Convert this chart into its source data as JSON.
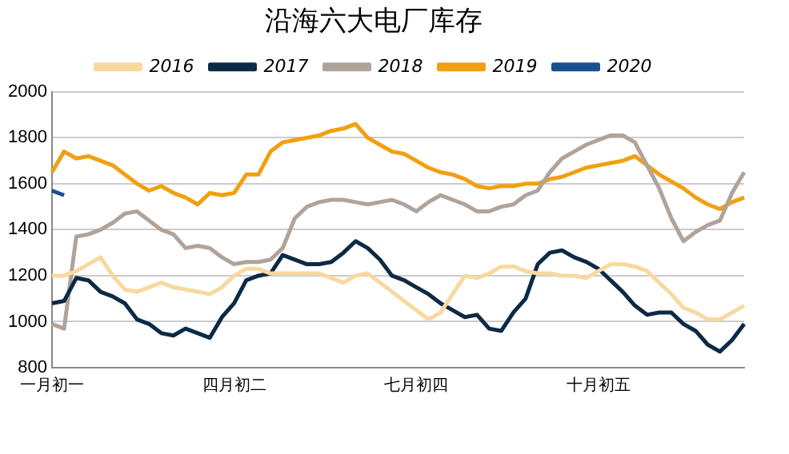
{
  "chart_data": {
    "type": "line",
    "title": "沿海六大电厂库存",
    "categories": [
      "一月初一",
      null,
      null,
      null,
      null,
      null,
      null,
      null,
      null,
      null,
      null,
      null,
      null,
      null,
      null,
      "四月初二",
      null,
      null,
      null,
      null,
      null,
      null,
      null,
      null,
      null,
      null,
      null,
      null,
      null,
      null,
      "七月初四",
      null,
      null,
      null,
      null,
      null,
      null,
      null,
      null,
      null,
      null,
      null,
      null,
      null,
      null,
      "十月初五",
      null,
      null,
      null,
      null,
      null,
      null,
      null,
      null,
      null,
      null,
      null,
      null
    ],
    "series": [
      {
        "name": "2016",
        "color": "#f7d9a0",
        "values": [
          1200,
          1200,
          1220,
          1250,
          1280,
          1200,
          1140,
          1130,
          1150,
          1170,
          1150,
          1140,
          1130,
          1120,
          1150,
          1200,
          1230,
          1230,
          1210,
          1210,
          1210,
          1210,
          1210,
          1190,
          1170,
          1200,
          1210,
          1170,
          1130,
          1090,
          1050,
          1010,
          1040,
          1120,
          1200,
          1190,
          1210,
          1240,
          1240,
          1220,
          1210,
          1210,
          1200,
          1200,
          1190,
          1220,
          1250,
          1250,
          1240,
          1220,
          1170,
          1120,
          1060,
          1040,
          1010,
          1010,
          1040,
          1070
        ]
      },
      {
        "name": "2017",
        "color": "#0d2a45",
        "values": [
          1080,
          1090,
          1190,
          1180,
          1130,
          1110,
          1080,
          1010,
          990,
          950,
          940,
          970,
          950,
          930,
          1020,
          1080,
          1180,
          1200,
          1210,
          1290,
          1270,
          1250,
          1250,
          1260,
          1300,
          1350,
          1320,
          1270,
          1200,
          1180,
          1150,
          1120,
          1080,
          1050,
          1020,
          1030,
          970,
          960,
          1040,
          1100,
          1250,
          1300,
          1310,
          1280,
          1260,
          1230,
          1180,
          1130,
          1070,
          1030,
          1040,
          1040,
          990,
          960,
          900,
          870,
          920,
          990
        ]
      },
      {
        "name": "2018",
        "color": "#b0a39a",
        "values": [
          990,
          970,
          1370,
          1380,
          1400,
          1430,
          1470,
          1480,
          1440,
          1400,
          1380,
          1320,
          1330,
          1320,
          1280,
          1250,
          1260,
          1260,
          1270,
          1320,
          1450,
          1500,
          1520,
          1530,
          1530,
          1520,
          1510,
          1520,
          1530,
          1510,
          1480,
          1520,
          1550,
          1530,
          1510,
          1480,
          1480,
          1500,
          1510,
          1550,
          1570,
          1650,
          1710,
          1740,
          1770,
          1790,
          1810,
          1810,
          1780,
          1680,
          1580,
          1450,
          1350,
          1390,
          1420,
          1440,
          1560,
          1650
        ]
      },
      {
        "name": "2019",
        "color": "#f0a010",
        "values": [
          1650,
          1740,
          1710,
          1720,
          1700,
          1680,
          1640,
          1600,
          1570,
          1590,
          1560,
          1540,
          1510,
          1560,
          1550,
          1560,
          1640,
          1640,
          1740,
          1780,
          1790,
          1800,
          1810,
          1830,
          1840,
          1860,
          1800,
          1770,
          1740,
          1730,
          1700,
          1670,
          1650,
          1640,
          1620,
          1590,
          1580,
          1590,
          1590,
          1600,
          1600,
          1620,
          1630,
          1650,
          1670,
          1680,
          1690,
          1700,
          1720,
          1680,
          1640,
          1610,
          1580,
          1540,
          1510,
          1490,
          1520,
          1540
        ]
      },
      {
        "name": "2020",
        "color": "#1a4f8f",
        "values": [
          1570,
          1550,
          null,
          null,
          null,
          null,
          null,
          null,
          null,
          null,
          null,
          null,
          null,
          null,
          null,
          null,
          null,
          null,
          null,
          null,
          null,
          null,
          null,
          null,
          null,
          null,
          null,
          null,
          null,
          null,
          null,
          null,
          null,
          null,
          null,
          null,
          null,
          null,
          null,
          null,
          null,
          null,
          null,
          null,
          null,
          null,
          null,
          null,
          null,
          null,
          null,
          null,
          null,
          null,
          null,
          null,
          null,
          null
        ]
      }
    ],
    "ylim": [
      800,
      2000
    ],
    "yticks": [
      800,
      1000,
      1200,
      1400,
      1600,
      1800,
      2000
    ],
    "grid": "y",
    "legend": "top",
    "marker": "none",
    "line_style": "solid"
  }
}
